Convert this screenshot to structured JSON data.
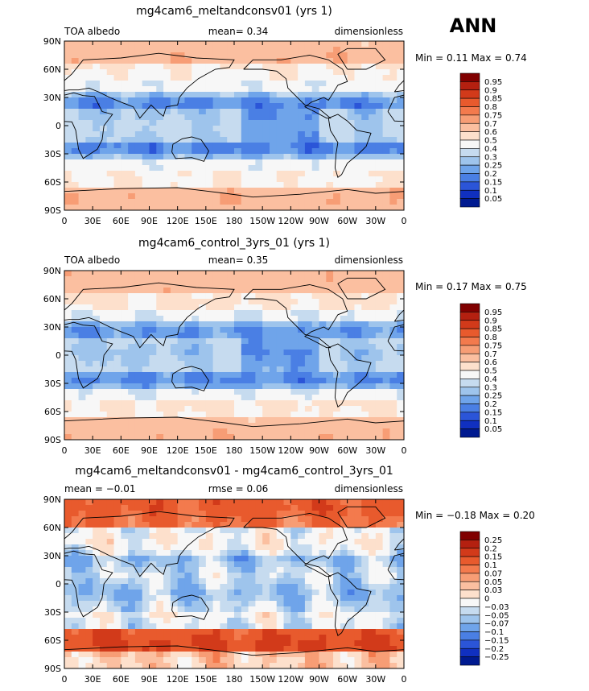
{
  "season": "ANN",
  "panels": [
    {
      "title": "mg4cam6_meltandconsv01 (yrs 1)",
      "left_label": "TOA albedo",
      "center_label": "mean=    0.34",
      "right_label": "dimensionless",
      "minmax": "Min =    0.11  Max =    0.74",
      "colorbar_labels": [
        "0.95",
        "0.9",
        "0.85",
        "0.8",
        "0.75",
        "0.7",
        "0.6",
        "0.5",
        "0.4",
        "0.3",
        "0.25",
        "0.2",
        "0.15",
        "0.1",
        "0.05"
      ],
      "colorbar_colors": [
        "#800000",
        "#b42010",
        "#d23a1a",
        "#e85a2d",
        "#f37a4d",
        "#f79d75",
        "#fbbfa0",
        "#fde0cc",
        "#f7f7f7",
        "#c6dbef",
        "#9ec4ec",
        "#6fa4ea",
        "#4a7fe4",
        "#2b55d8",
        "#1030c0",
        "#001a90"
      ]
    },
    {
      "title": "mg4cam6_control_3yrs_01 (yrs 1)",
      "left_label": "TOA albedo",
      "center_label": "mean=    0.35",
      "right_label": "dimensionless",
      "minmax": "Min =    0.17  Max =    0.75",
      "colorbar_labels": [
        "0.95",
        "0.9",
        "0.85",
        "0.8",
        "0.75",
        "0.7",
        "0.6",
        "0.5",
        "0.4",
        "0.3",
        "0.25",
        "0.2",
        "0.15",
        "0.1",
        "0.05"
      ],
      "colorbar_colors": [
        "#800000",
        "#b42010",
        "#d23a1a",
        "#e85a2d",
        "#f37a4d",
        "#f79d75",
        "#fbbfa0",
        "#fde0cc",
        "#f7f7f7",
        "#c6dbef",
        "#9ec4ec",
        "#6fa4ea",
        "#4a7fe4",
        "#2b55d8",
        "#1030c0",
        "#001a90"
      ]
    },
    {
      "title": "mg4cam6_meltandconsv01 - mg4cam6_control_3yrs_01",
      "left_label": "mean =   −0.01",
      "center_label": "rmse =    0.06",
      "right_label": "dimensionless",
      "minmax": "Min =   −0.18  Max =    0.20",
      "colorbar_labels": [
        "0.25",
        "0.2",
        "0.15",
        "0.1",
        "0.07",
        "0.05",
        "0.03",
        "0",
        "−0.03",
        "−0.05",
        "−0.07",
        "−0.1",
        "−0.15",
        "−0.2",
        "−0.25"
      ],
      "colorbar_colors": [
        "#800000",
        "#b42010",
        "#d23a1a",
        "#e85a2d",
        "#f37a4d",
        "#f79d75",
        "#fbbfa0",
        "#fde0cc",
        "#f7f7f7",
        "#c6dbef",
        "#9ec4ec",
        "#6fa4ea",
        "#4a7fe4",
        "#2b55d8",
        "#1030c0",
        "#001a90"
      ]
    }
  ],
  "lat_ticks": [
    "90N",
    "60N",
    "30N",
    "0",
    "30S",
    "60S",
    "90S"
  ],
  "lon_ticks": [
    "0",
    "30E",
    "60E",
    "90E",
    "120E",
    "150E",
    "180",
    "150W",
    "120W",
    "90W",
    "60W",
    "30W",
    "0"
  ]
}
